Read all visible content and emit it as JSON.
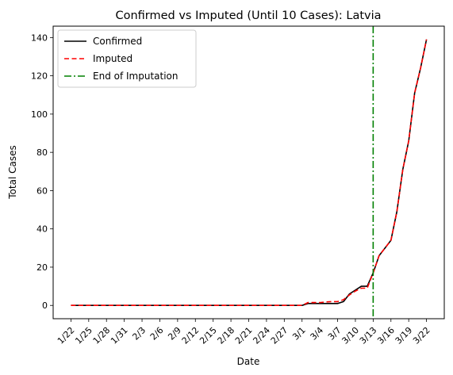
{
  "chart_data": {
    "type": "line",
    "title": "Confirmed vs Imputed (Until 10 Cases): Latvia",
    "xlabel": "Date",
    "ylabel": "Total Cases",
    "ylim": [
      -6.95,
      145.95
    ],
    "yticks": [
      0,
      20,
      40,
      60,
      80,
      100,
      120,
      140
    ],
    "x": [
      "1/22",
      "1/23",
      "1/24",
      "1/25",
      "1/26",
      "1/27",
      "1/28",
      "1/29",
      "1/30",
      "1/31",
      "2/1",
      "2/2",
      "2/3",
      "2/4",
      "2/5",
      "2/6",
      "2/7",
      "2/8",
      "2/9",
      "2/10",
      "2/11",
      "2/12",
      "2/13",
      "2/14",
      "2/15",
      "2/16",
      "2/17",
      "2/18",
      "2/19",
      "2/20",
      "2/21",
      "2/22",
      "2/23",
      "2/24",
      "2/25",
      "2/26",
      "2/27",
      "2/28",
      "2/29",
      "3/1",
      "3/2",
      "3/3",
      "3/4",
      "3/5",
      "3/6",
      "3/7",
      "3/8",
      "3/9",
      "3/10",
      "3/11",
      "3/12",
      "3/13",
      "3/14",
      "3/15",
      "3/16",
      "3/17",
      "3/18",
      "3/19",
      "3/20",
      "3/21",
      "3/22"
    ],
    "xtick_labels": [
      "1/22",
      "1/25",
      "1/28",
      "1/31",
      "2/3",
      "2/6",
      "2/9",
      "2/12",
      "2/15",
      "2/18",
      "2/21",
      "2/24",
      "2/27",
      "3/1",
      "3/4",
      "3/7",
      "3/10",
      "3/13",
      "3/16",
      "3/19",
      "3/22"
    ],
    "series": [
      {
        "name": "Confirmed",
        "color": "#000000",
        "style": "solid",
        "values": [
          0,
          0,
          0,
          0,
          0,
          0,
          0,
          0,
          0,
          0,
          0,
          0,
          0,
          0,
          0,
          0,
          0,
          0,
          0,
          0,
          0,
          0,
          0,
          0,
          0,
          0,
          0,
          0,
          0,
          0,
          0,
          0,
          0,
          0,
          0,
          0,
          0,
          0,
          0,
          0,
          1,
          1,
          1,
          1,
          1,
          1,
          2,
          6,
          8,
          10,
          10,
          17,
          26,
          30,
          34,
          49,
          71,
          86,
          111,
          124,
          139
        ]
      },
      {
        "name": "Imputed",
        "color": "#ff0000",
        "style": "dashed",
        "values": [
          0,
          0,
          0,
          0,
          0,
          0,
          0,
          0,
          0,
          0,
          0,
          0,
          0,
          0,
          0,
          0,
          0,
          0,
          0,
          0,
          0,
          0,
          0,
          0,
          0,
          0,
          0,
          0,
          0,
          0,
          0,
          0,
          0,
          0,
          0,
          0,
          0,
          0,
          0,
          0,
          1.5,
          1.5,
          1.5,
          1.8,
          2,
          2,
          3,
          5.5,
          7.5,
          9,
          9,
          17,
          26,
          30,
          34,
          49,
          71,
          86,
          111,
          124,
          139
        ]
      }
    ],
    "vlines": [
      {
        "name": "End of Imputation",
        "x": "3/13",
        "color": "#008000",
        "style": "dashdot"
      }
    ],
    "legend_position": "top-left",
    "grid": false
  }
}
